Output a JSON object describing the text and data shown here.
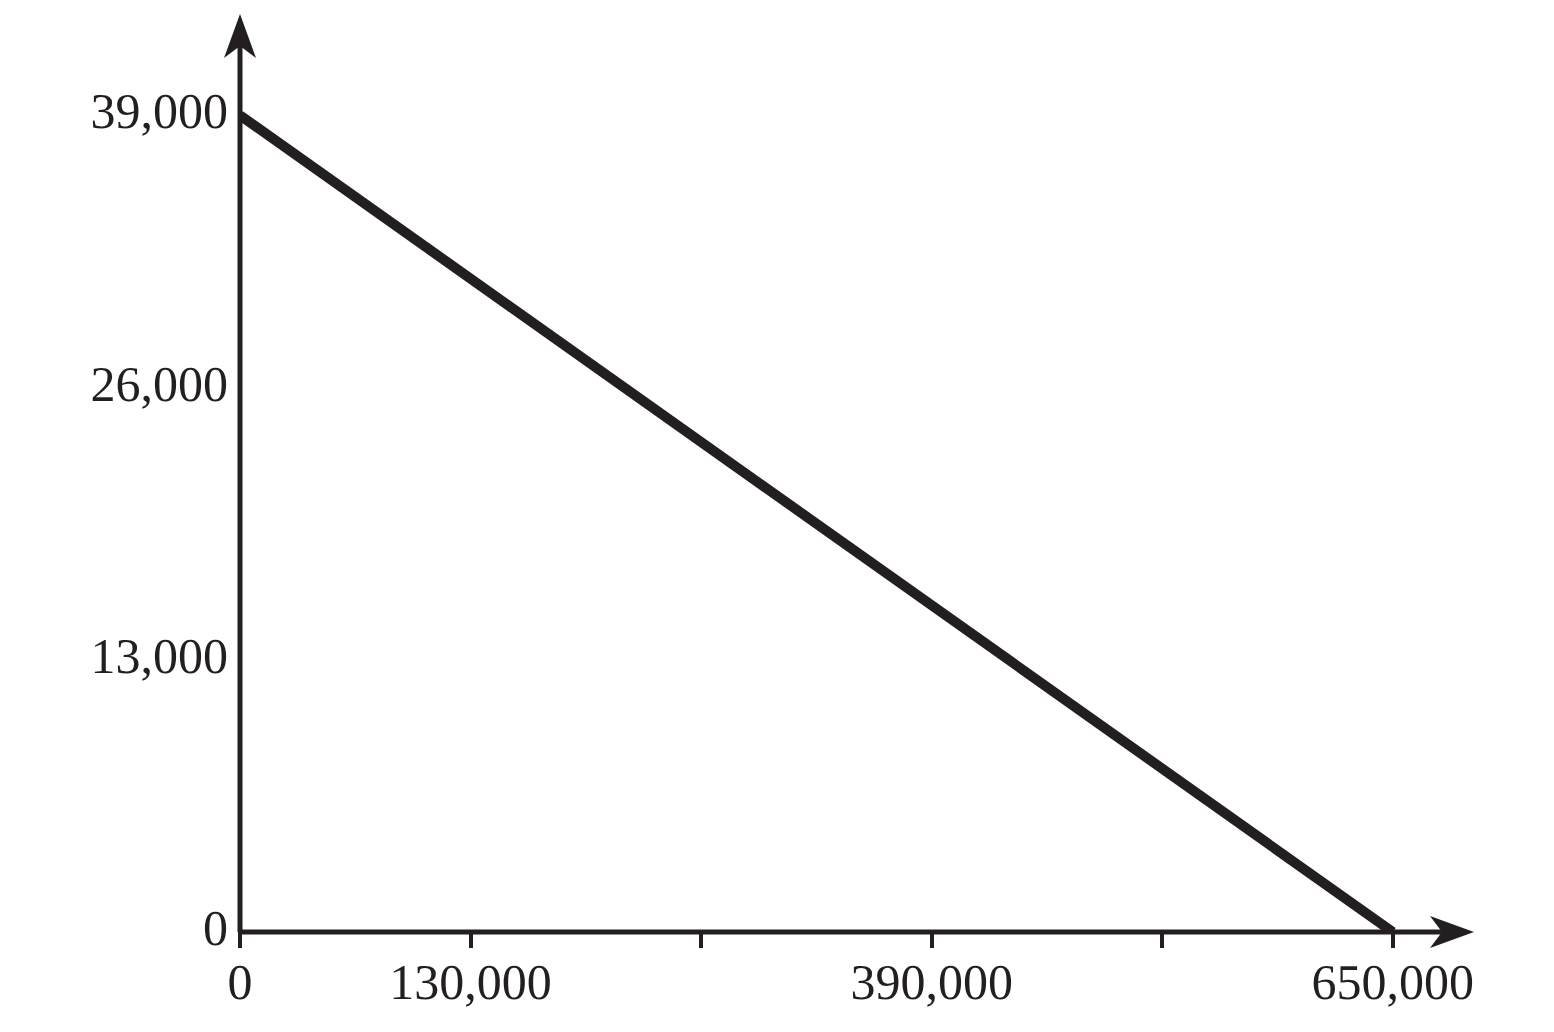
{
  "chart_data": {
    "type": "line",
    "x": [
      0,
      650000
    ],
    "series": [
      {
        "color": "#231f20",
        "values": [
          39000,
          0
        ]
      }
    ],
    "xlim": [
      0,
      680000
    ],
    "ylim": [
      0,
      42500
    ],
    "xticks": [
      0,
      {
        "value": 130000,
        "label": "130,000"
      },
      {
        "value": 260000,
        "label": null
      },
      {
        "value": 390000,
        "label": "390,000"
      },
      {
        "value": 520000,
        "label": null
      },
      {
        "value": 650000,
        "label": "650,000"
      }
    ],
    "yticks": [
      0,
      {
        "value": 13000,
        "label": "13,000"
      },
      {
        "value": 26000,
        "label": "26,000"
      },
      {
        "value": 39000,
        "label": "39,000"
      }
    ],
    "marker": "none",
    "line_style": "solid"
  }
}
